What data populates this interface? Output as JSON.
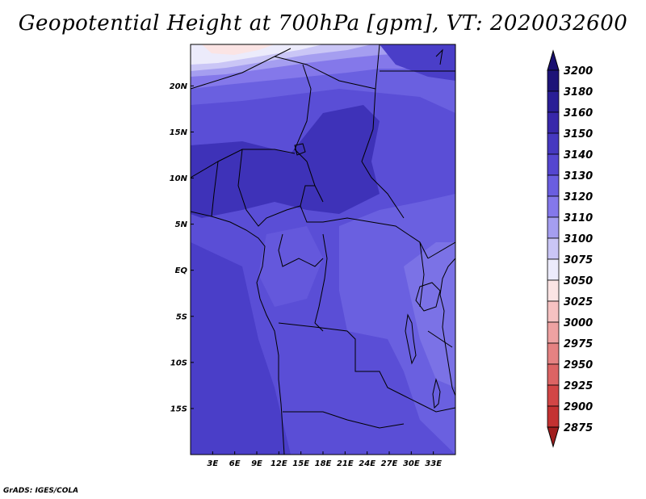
{
  "title": "Geopotential Height at 700hPa [gpm], VT: 2020032600",
  "credit": "GrADS: IGES/COLA",
  "map": {
    "lon_range": [
      0,
      36
    ],
    "lat_range": [
      -20,
      24.5
    ],
    "lat_ticks": [
      {
        "value": 20,
        "label": "20N"
      },
      {
        "value": 15,
        "label": "15N"
      },
      {
        "value": 10,
        "label": "10N"
      },
      {
        "value": 5,
        "label": "5N"
      },
      {
        "value": 0,
        "label": "EQ"
      },
      {
        "value": -5,
        "label": "5S"
      },
      {
        "value": -10,
        "label": "10S"
      },
      {
        "value": -15,
        "label": "15S"
      }
    ],
    "lon_ticks": [
      {
        "value": 3,
        "label": "3E"
      },
      {
        "value": 6,
        "label": "6E"
      },
      {
        "value": 9,
        "label": "9E"
      },
      {
        "value": 12,
        "label": "12E"
      },
      {
        "value": 15,
        "label": "15E"
      },
      {
        "value": 18,
        "label": "18E"
      },
      {
        "value": 21,
        "label": "21E"
      },
      {
        "value": 24,
        "label": "24E"
      },
      {
        "value": 27,
        "label": "27E"
      },
      {
        "value": 30,
        "label": "30E"
      },
      {
        "value": 33,
        "label": "33E"
      }
    ]
  },
  "colorbar": {
    "levels": [
      {
        "label": "3200",
        "color": "#1e1478"
      },
      {
        "label": "3180",
        "color": "#2a1e96"
      },
      {
        "label": "3160",
        "color": "#3828aa"
      },
      {
        "label": "3150",
        "color": "#4638c0"
      },
      {
        "label": "3140",
        "color": "#5546d0"
      },
      {
        "label": "3130",
        "color": "#6a5ee0"
      },
      {
        "label": "3120",
        "color": "#8478ea"
      },
      {
        "label": "3110",
        "color": "#a59ef0"
      },
      {
        "label": "3100",
        "color": "#cac6f6"
      },
      {
        "label": "3075",
        "color": "#ecebfb"
      },
      {
        "label": "3050",
        "color": "#fbe4e4"
      },
      {
        "label": "3025",
        "color": "#f6c2c2"
      },
      {
        "label": "3000",
        "color": "#eea2a2"
      },
      {
        "label": "2975",
        "color": "#e58282"
      },
      {
        "label": "2950",
        "color": "#dc6464"
      },
      {
        "label": "2925",
        "color": "#d24646"
      },
      {
        "label": "2900",
        "color": "#c43232"
      },
      {
        "label": "2875",
        "color": "#b22222"
      }
    ],
    "top_extend_color": "#1a1070",
    "bottom_extend_color": "#a01e1e"
  }
}
